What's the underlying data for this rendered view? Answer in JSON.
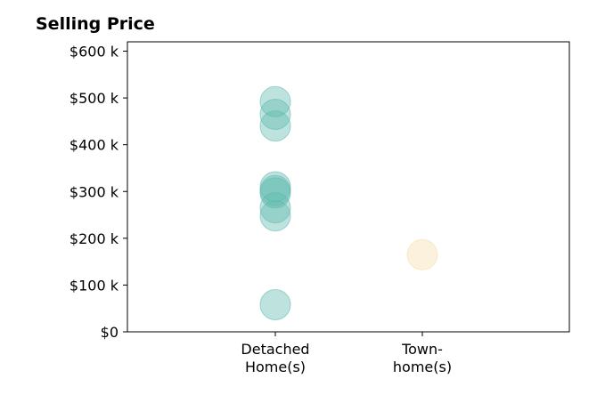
{
  "chart_data": {
    "type": "scatter",
    "title": "Selling Price",
    "xlabel": "",
    "ylabel": "",
    "categories": [
      "Detached\nHome(s)",
      "Town-\nhome(s)"
    ],
    "ylim": [
      0,
      620000
    ],
    "yticks": [
      {
        "value": 0,
        "label": "$0"
      },
      {
        "value": 100000,
        "label": "$100 k"
      },
      {
        "value": 200000,
        "label": "$200 k"
      },
      {
        "value": 300000,
        "label": "$300 k"
      },
      {
        "value": 400000,
        "label": "$400 k"
      },
      {
        "value": 500000,
        "label": "$500 k"
      },
      {
        "value": 600000,
        "label": "$600 k"
      }
    ],
    "series": [
      {
        "category": "Detached\nHome(s)",
        "color": "#5db8ad",
        "values": [
          58000,
          248000,
          265000,
          297000,
          302000,
          310000,
          440000,
          465000,
          492000
        ]
      },
      {
        "category": "Town-\nhome(s)",
        "color": "#f5ddaa",
        "values": [
          165000
        ]
      }
    ],
    "grid": false,
    "legend": "none"
  }
}
